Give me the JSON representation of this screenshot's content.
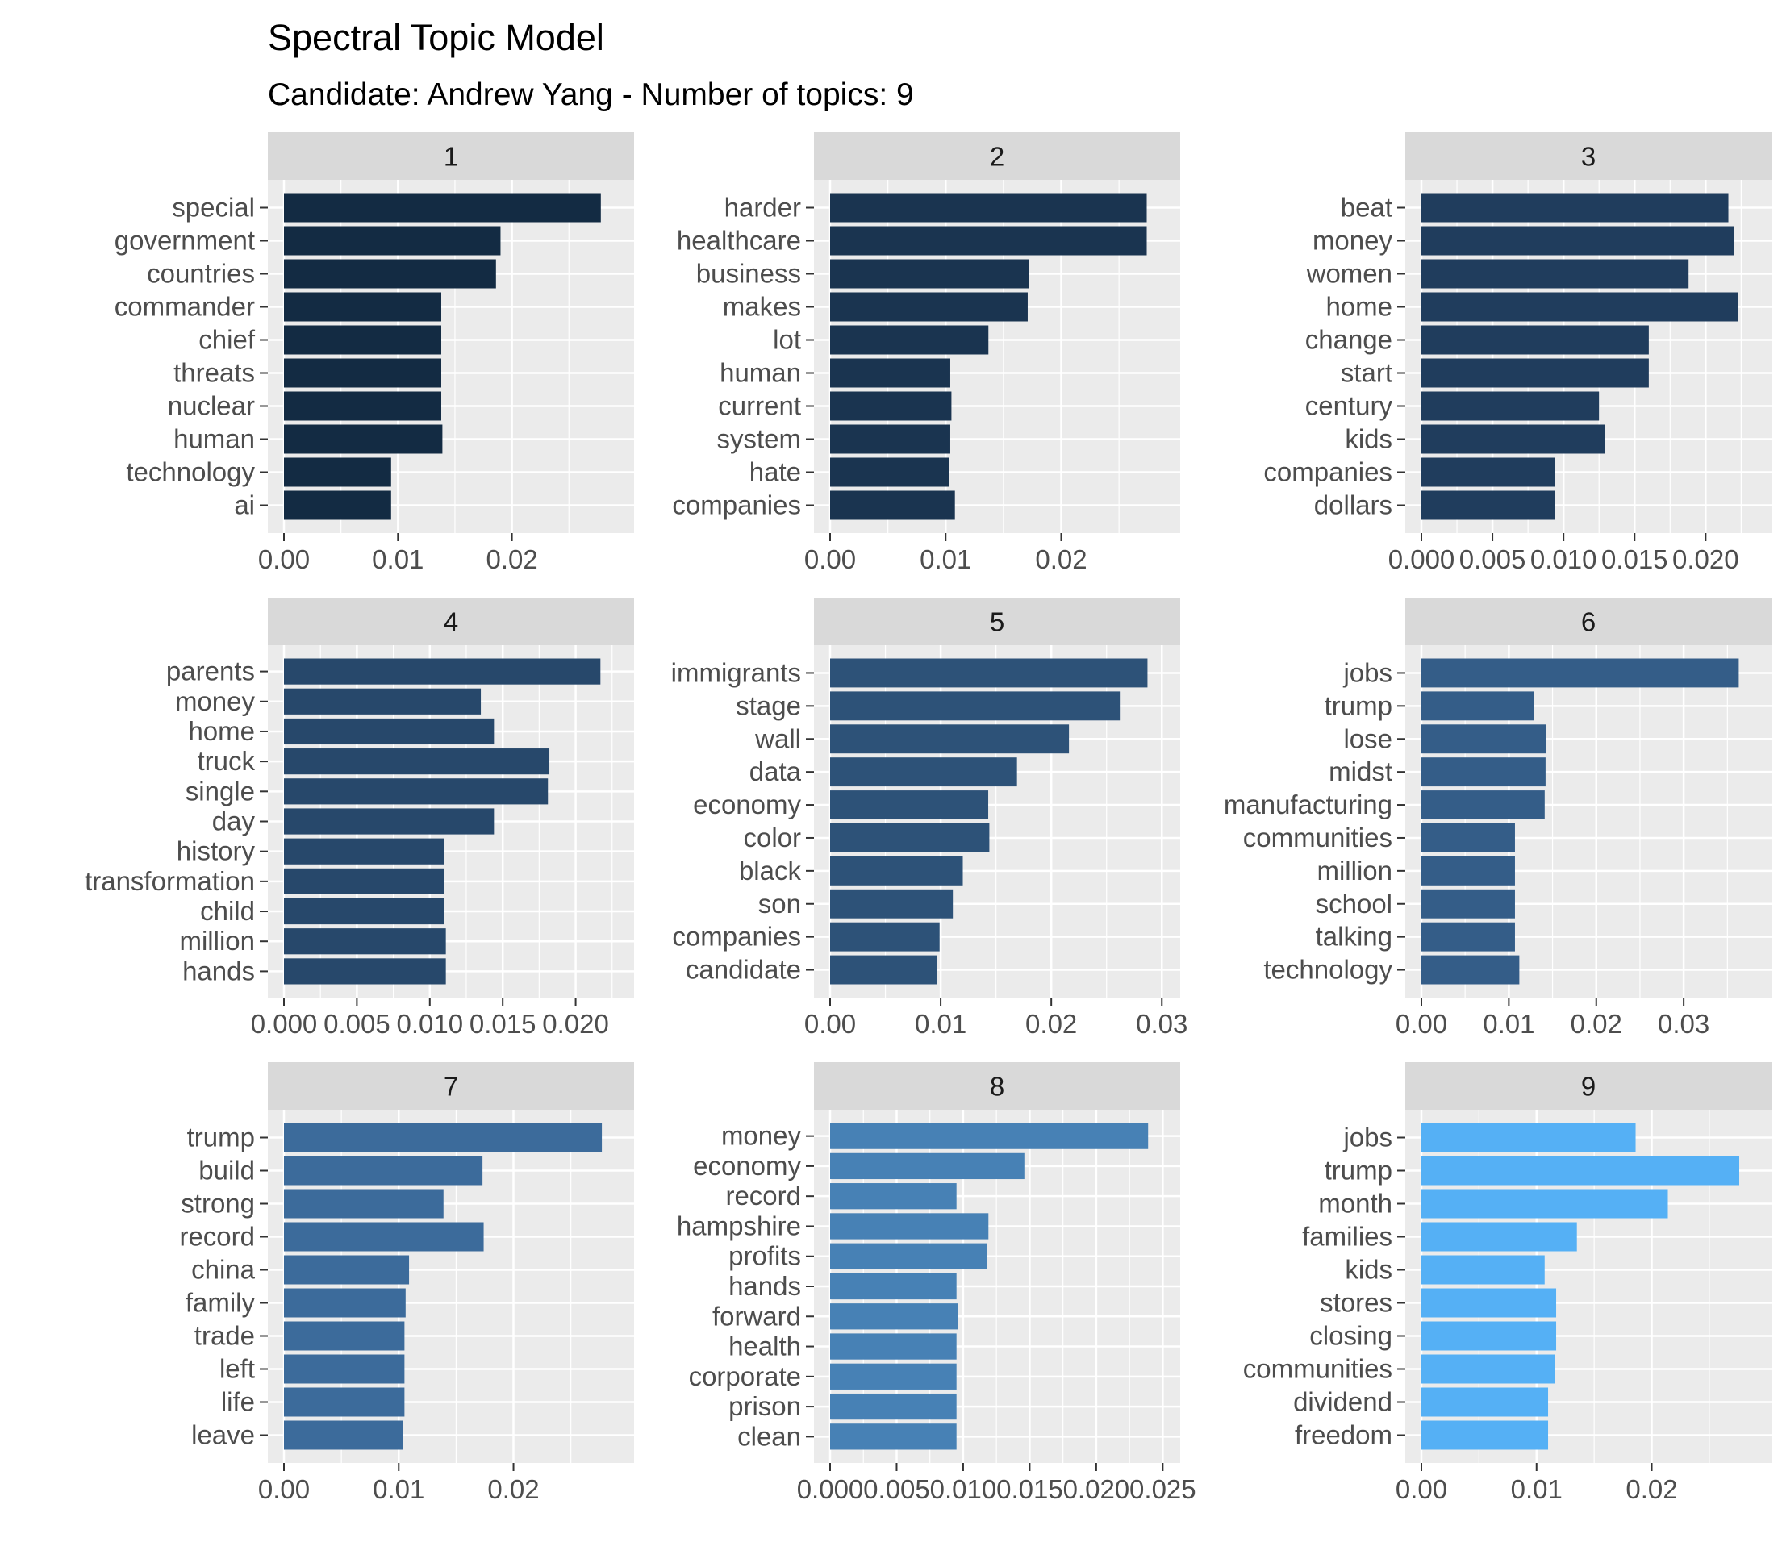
{
  "title": "Spectral Topic Model",
  "subtitle": "Candidate: Andrew Yang - Number of topics: 9",
  "colors": {
    "panel_background": "#ebebeb",
    "grid": "#ffffff",
    "strip_background": "#d9d9d9",
    "bar_fills": [
      "#132b43",
      "#1a3450",
      "#203d5d",
      "#27486b",
      "#2d5278",
      "#345d88",
      "#3c6b9b",
      "#4781b5",
      "#55b0f5"
    ]
  },
  "chart_data": [
    {
      "type": "bar",
      "orientation": "horizontal",
      "facet": "1",
      "categories": [
        "special",
        "government",
        "countries",
        "commander",
        "chief",
        "threats",
        "nuclear",
        "human",
        "technology",
        "ai"
      ],
      "values": [
        0.0278,
        0.019,
        0.0186,
        0.0138,
        0.0138,
        0.0138,
        0.0138,
        0.0139,
        0.0094,
        0.0094
      ],
      "xlim": [
        0,
        0.0293
      ],
      "x_ticks": [
        0.0,
        0.01,
        0.02
      ],
      "x_tick_labels": [
        "0.00",
        "0.01",
        "0.02"
      ]
    },
    {
      "type": "bar",
      "orientation": "horizontal",
      "facet": "2",
      "categories": [
        "harder",
        "healthcare",
        "business",
        "makes",
        "lot",
        "human",
        "current",
        "system",
        "hate",
        "companies"
      ],
      "values": [
        0.0274,
        0.0274,
        0.0172,
        0.0171,
        0.0137,
        0.0104,
        0.0105,
        0.0104,
        0.0103,
        0.0108
      ],
      "xlim": [
        0,
        0.0289
      ],
      "x_ticks": [
        0.0,
        0.01,
        0.02
      ],
      "x_tick_labels": [
        "0.00",
        "0.01",
        "0.02"
      ]
    },
    {
      "type": "bar",
      "orientation": "horizontal",
      "facet": "3",
      "categories": [
        "beat",
        "money",
        "women",
        "home",
        "change",
        "start",
        "century",
        "kids",
        "companies",
        "dollars"
      ],
      "values": [
        0.0216,
        0.022,
        0.0188,
        0.0223,
        0.016,
        0.016,
        0.0125,
        0.0129,
        0.0094,
        0.0094
      ],
      "xlim": [
        0,
        0.0235
      ],
      "x_ticks": [
        0.0,
        0.005,
        0.01,
        0.015,
        0.02
      ],
      "x_tick_labels": [
        "0.000",
        "0.005",
        "0.010",
        "0.015",
        "0.020"
      ]
    },
    {
      "type": "bar",
      "orientation": "horizontal",
      "facet": "4",
      "categories": [
        "parents",
        "money",
        "home",
        "truck",
        "single",
        "day",
        "history",
        "transformation",
        "child",
        "million",
        "hands"
      ],
      "values": [
        0.0217,
        0.0135,
        0.0144,
        0.0182,
        0.0181,
        0.0144,
        0.011,
        0.011,
        0.011,
        0.0111,
        0.0111
      ],
      "xlim": [
        0,
        0.0229
      ],
      "x_ticks": [
        0.0,
        0.005,
        0.01,
        0.015,
        0.02
      ],
      "x_tick_labels": [
        "0.000",
        "0.005",
        "0.010",
        "0.015",
        "0.020"
      ]
    },
    {
      "type": "bar",
      "orientation": "horizontal",
      "facet": "5",
      "categories": [
        "immigrants",
        "stage",
        "wall",
        "data",
        "economy",
        "color",
        "black",
        "son",
        "companies",
        "candidate"
      ],
      "values": [
        0.0287,
        0.0262,
        0.0216,
        0.0169,
        0.0143,
        0.0144,
        0.012,
        0.0111,
        0.0099,
        0.0097
      ],
      "xlim": [
        0,
        0.0302
      ],
      "x_ticks": [
        0.0,
        0.01,
        0.02,
        0.03
      ],
      "x_tick_labels": [
        "0.00",
        "0.01",
        "0.02",
        "0.03"
      ]
    },
    {
      "type": "bar",
      "orientation": "horizontal",
      "facet": "6",
      "categories": [
        "jobs",
        "trump",
        "lose",
        "midst",
        "manufacturing",
        "communities",
        "million",
        "school",
        "talking",
        "technology"
      ],
      "values": [
        0.0363,
        0.0129,
        0.0143,
        0.0142,
        0.0141,
        0.0107,
        0.0107,
        0.0107,
        0.0107,
        0.0112
      ],
      "xlim": [
        0,
        0.0382
      ],
      "x_ticks": [
        0.0,
        0.01,
        0.02,
        0.03
      ],
      "x_tick_labels": [
        "0.00",
        "0.01",
        "0.02",
        "0.03"
      ]
    },
    {
      "type": "bar",
      "orientation": "horizontal",
      "facet": "7",
      "categories": [
        "trump",
        "build",
        "strong",
        "record",
        "china",
        "family",
        "trade",
        "left",
        "life",
        "leave"
      ],
      "values": [
        0.0277,
        0.0173,
        0.0139,
        0.0174,
        0.0109,
        0.0106,
        0.0105,
        0.0105,
        0.0105,
        0.0104
      ],
      "xlim": [
        0,
        0.0291
      ],
      "x_ticks": [
        0.0,
        0.01,
        0.02
      ],
      "x_tick_labels": [
        "0.00",
        "0.01",
        "0.02"
      ]
    },
    {
      "type": "bar",
      "orientation": "horizontal",
      "facet": "8",
      "categories": [
        "money",
        "economy",
        "record",
        "hampshire",
        "profits",
        "hands",
        "forward",
        "health",
        "corporate",
        "prison",
        "clean"
      ],
      "values": [
        0.0239,
        0.0146,
        0.0095,
        0.0119,
        0.0118,
        0.0095,
        0.0096,
        0.0095,
        0.0095,
        0.0095,
        0.0095
      ],
      "xlim": [
        0,
        0.0251
      ],
      "x_ticks": [
        0.0,
        0.005,
        0.01,
        0.015,
        0.02,
        0.025
      ],
      "x_tick_labels": [
        "0.000",
        "0.005",
        "0.010",
        "0.015",
        "0.020",
        "0.025"
      ]
    },
    {
      "type": "bar",
      "orientation": "horizontal",
      "facet": "9",
      "categories": [
        "jobs",
        "trump",
        "month",
        "families",
        "kids",
        "stores",
        "closing",
        "communities",
        "dividend",
        "freedom"
      ],
      "values": [
        0.0186,
        0.0276,
        0.0214,
        0.0135,
        0.0107,
        0.0117,
        0.0117,
        0.0116,
        0.011,
        0.011
      ],
      "xlim": [
        0,
        0.029
      ],
      "x_ticks": [
        0.0,
        0.01,
        0.02
      ],
      "x_tick_labels": [
        "0.00",
        "0.01",
        "0.02"
      ]
    }
  ]
}
